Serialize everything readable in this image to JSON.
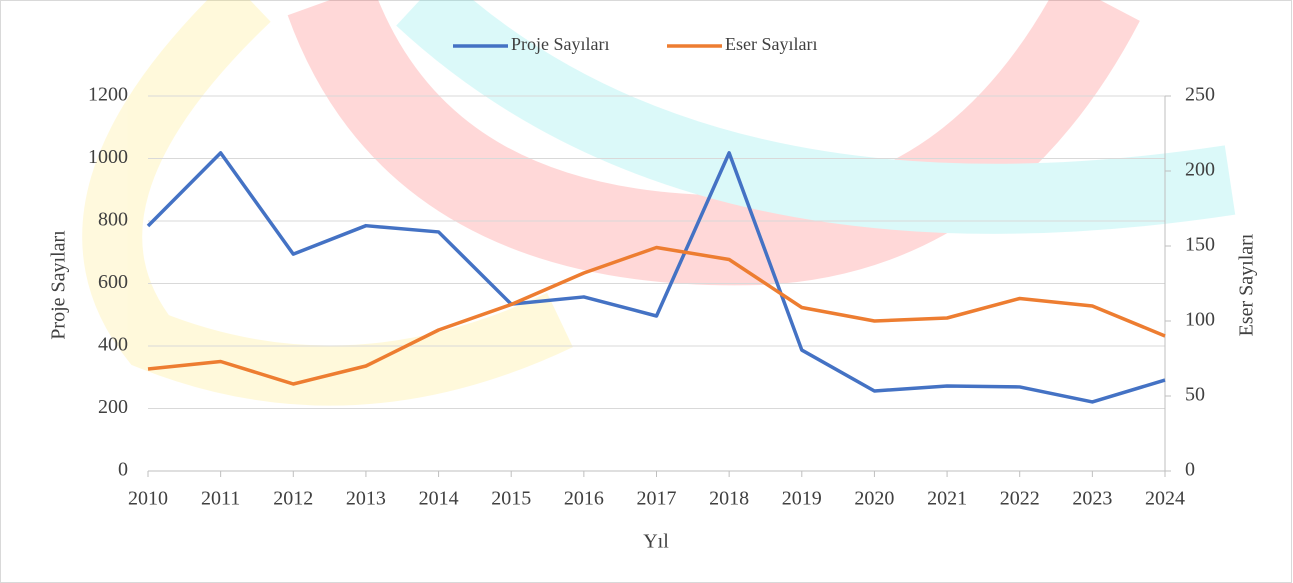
{
  "chart_data": {
    "type": "line",
    "x_label": "Yıl",
    "y_label": "Proje Sayıları",
    "y2_label": "Eser Sayıları",
    "x": [
      2010,
      2011,
      2012,
      2013,
      2014,
      2015,
      2016,
      2017,
      2018,
      2019,
      2020,
      2021,
      2022,
      2023,
      2024
    ],
    "xlim": [
      2010,
      2024
    ],
    "xticks": [
      2010,
      2011,
      2012,
      2013,
      2014,
      2015,
      2016,
      2017,
      2018,
      2019,
      2020,
      2021,
      2022,
      2023,
      2024
    ],
    "ylim": [
      0,
      1200
    ],
    "yticks": [
      0,
      200,
      400,
      600,
      800,
      1000,
      1200
    ],
    "y2lim": [
      0,
      250
    ],
    "y2ticks": [
      0,
      50,
      100,
      150,
      200,
      250
    ],
    "grid": true,
    "legend": "top",
    "series": [
      {
        "name": "Proje Sayıları",
        "color": "#4472c4",
        "values": [
          784,
          1018,
          694,
          785,
          765,
          534,
          557,
          496,
          1018,
          387,
          256,
          272,
          269,
          221,
          291
        ]
      },
      {
        "name": "Eser Sayıları",
        "color": "#ed7d31",
        "axis": "y2",
        "values": [
          68,
          73,
          58,
          70,
          94,
          111,
          132,
          149,
          141,
          109,
          100,
          102,
          115,
          110,
          90
        ]
      }
    ]
  }
}
